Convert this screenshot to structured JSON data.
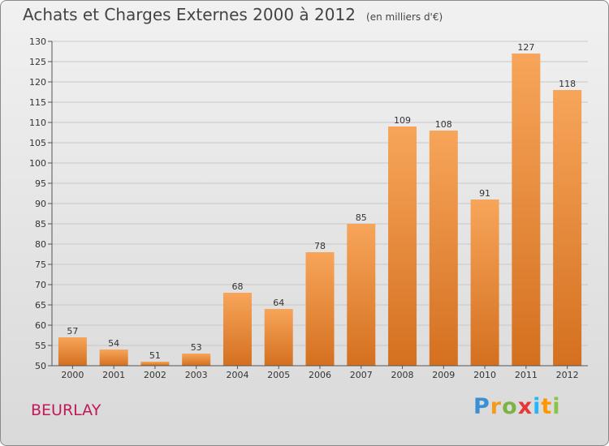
{
  "title": "Achats et Charges Externes 2000 à 2012",
  "subtitle": "(en milliers d'€)",
  "place": "BEURLAY",
  "brand": {
    "letters": [
      "P",
      "r",
      "o",
      "x",
      "i",
      "t",
      "i"
    ],
    "colors": [
      "#3b8fd4",
      "#f29b1d",
      "#7cb342",
      "#e53935",
      "#29b6f6",
      "#ff9800",
      "#8bc34a"
    ]
  },
  "colors": {
    "bar_top": "#f7a55a",
    "bar_bottom": "#d4701f",
    "grid": "#c8c8c8"
  },
  "chart_data": {
    "type": "bar",
    "categories": [
      "2000",
      "2001",
      "2002",
      "2003",
      "2004",
      "2005",
      "2006",
      "2007",
      "2008",
      "2009",
      "2010",
      "2011",
      "2012"
    ],
    "values": [
      57,
      54,
      51,
      53,
      68,
      64,
      78,
      85,
      109,
      108,
      91,
      127,
      118
    ],
    "ylim": [
      50,
      130
    ],
    "yticks": [
      50,
      55,
      60,
      65,
      70,
      75,
      80,
      85,
      90,
      95,
      100,
      105,
      110,
      115,
      120,
      125,
      130
    ],
    "grid": true
  }
}
